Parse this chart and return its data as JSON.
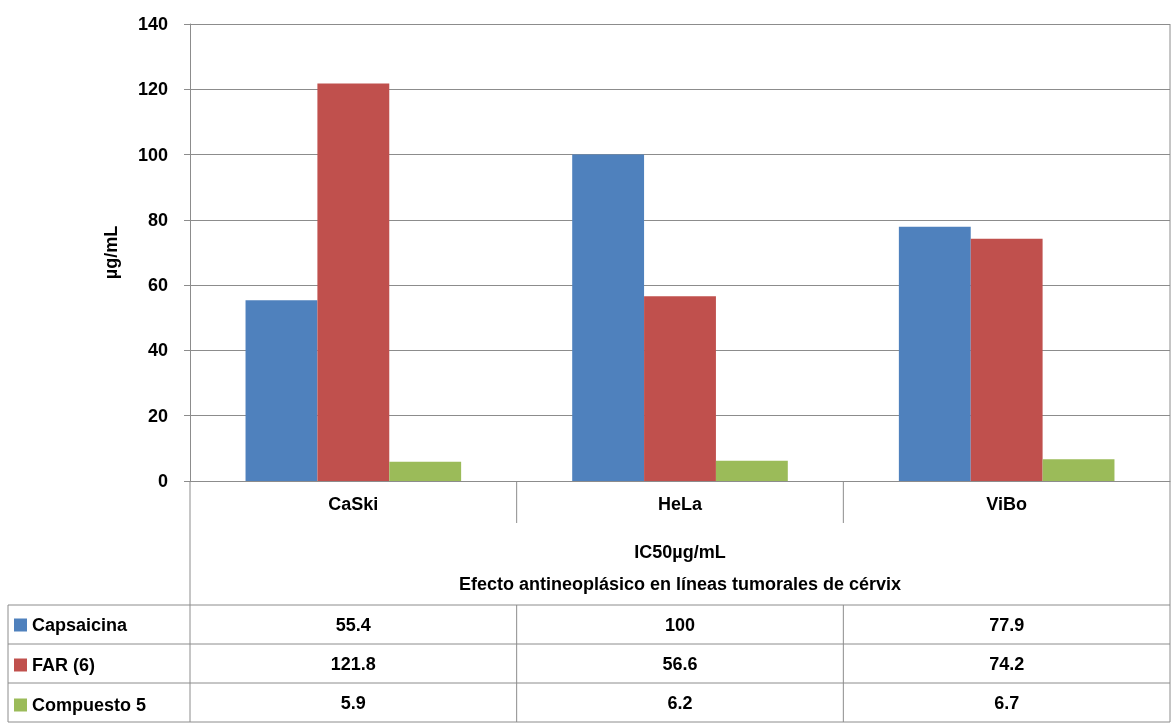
{
  "chart_data": {
    "type": "bar",
    "ylabel": "µg/mL",
    "xlabel": "IC50µg/mL",
    "annotations": [
      "Efecto antineoplásico en líneas tumorales de cérvix"
    ],
    "categories": [
      "CaSki",
      "HeLa",
      "ViBo"
    ],
    "series": [
      {
        "name": "Capsaicina",
        "color": "#4f81bd",
        "values": [
          55.4,
          100,
          77.9
        ]
      },
      {
        "name": "FAR (6)",
        "color": "#c0504d",
        "values": [
          121.8,
          56.6,
          74.2
        ]
      },
      {
        "name": "Compuesto 5",
        "color": "#9bbb59",
        "values": [
          5.9,
          6.2,
          6.7
        ]
      }
    ],
    "ylim": [
      0,
      140
    ],
    "yticks": [
      0,
      20,
      40,
      60,
      80,
      100,
      120,
      140
    ],
    "grid": "y",
    "legend": "bottom left",
    "data_labels": true
  }
}
